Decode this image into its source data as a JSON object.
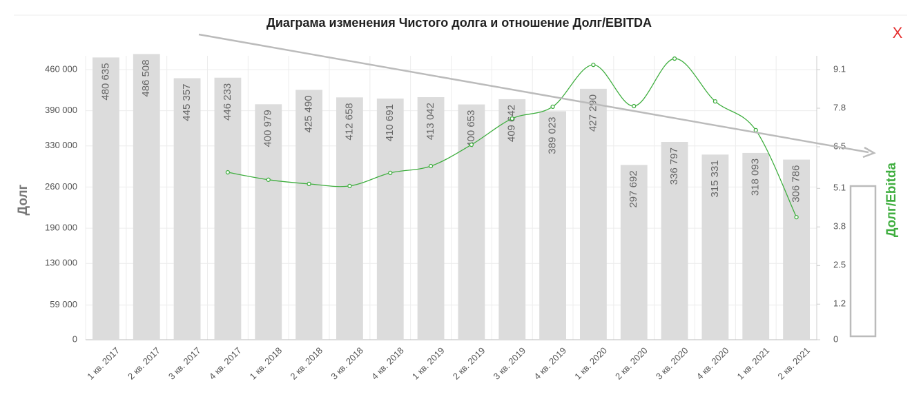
{
  "chart_data": {
    "type": "bar",
    "title": "Диаграма изменения Чистого долга и отношение Долг/EBITDA",
    "close_label": "X",
    "y_label": "Долг",
    "y2_label": "Долг/Ebitda",
    "categories": [
      "1 кв. 2017",
      "2 кв. 2017",
      "3 кв. 2017",
      "4 кв. 2017",
      "1 кв. 2018",
      "2 кв. 2018",
      "3 кв. 2018",
      "4 кв. 2018",
      "1 кв. 2019",
      "2 кв. 2019",
      "3 кв. 2019",
      "4 кв. 2019",
      "1 кв. 2020",
      "2 кв. 2020",
      "3 кв. 2020",
      "4 кв. 2020",
      "1 кв. 2021",
      "2 кв. 2021"
    ],
    "series": [
      {
        "name": "Долг",
        "type": "bar",
        "color": "#dcdcdc",
        "values": [
          480635,
          486508,
          445357,
          446233,
          400979,
          425490,
          412658,
          410691,
          413042,
          400653,
          409642,
          389023,
          427290,
          297692,
          336797,
          315331,
          318093,
          306786
        ],
        "value_labels": [
          "480 635",
          "486 508",
          "445 357",
          "446 233",
          "400 979",
          "425 490",
          "412 658",
          "410 691",
          "413 042",
          "400 653",
          "409 642",
          "389 023",
          "427 290",
          "297 692",
          "336 797",
          "315 331",
          "318 093",
          "306 786"
        ]
      },
      {
        "name": "Долг/Ebitda",
        "type": "line",
        "axis": "y2",
        "color": "#3fae3f",
        "values": [
          null,
          null,
          null,
          5.64,
          5.39,
          5.25,
          5.18,
          5.62,
          5.85,
          6.57,
          7.45,
          7.85,
          9.26,
          7.87,
          9.47,
          8.03,
          7.06,
          4.13
        ]
      }
    ],
    "ylim": [
      0,
      460000
    ],
    "yticks": [
      0,
      {
        "value": 59000,
        "label": "59 000"
      },
      {
        "value": 130000,
        "label": "130 000"
      },
      {
        "value": 190000,
        "label": "190 000"
      },
      {
        "value": 260000,
        "label": "260 000"
      },
      {
        "value": 330000,
        "label": "330 000"
      },
      {
        "value": 390000,
        "label": "390 000"
      },
      {
        "value": 460000,
        "label": "460 000"
      }
    ],
    "y2lim": [
      0,
      9.1
    ],
    "y2ticks": [
      0,
      1.2,
      2.5,
      3.8,
      5.1,
      6.5,
      7.8,
      9.1
    ],
    "grid": true
  }
}
